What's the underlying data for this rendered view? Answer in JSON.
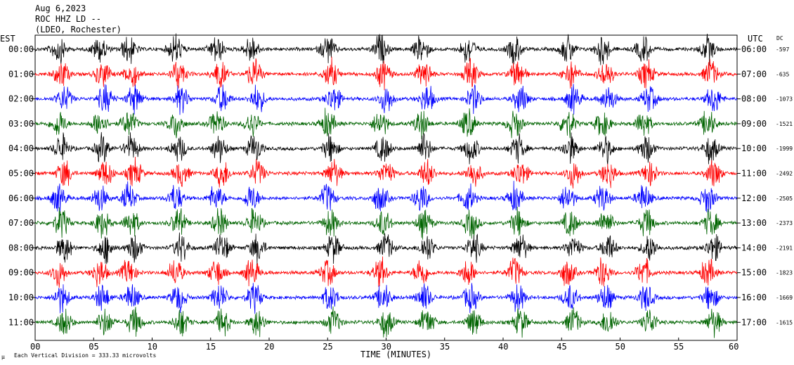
{
  "header": {
    "date": "Aug 6,2023",
    "station": "ROC HHZ LD --",
    "network": "(LDEO, Rochester)"
  },
  "footer": {
    "scale_note": "Each Vertical Division = 333.33 microvolts",
    "corner_mark": "μ"
  },
  "chart_data": {
    "type": "line",
    "title": "",
    "left_axis_label": "EST",
    "right_axis_label": "UTC",
    "dc_label": "DC",
    "xlabel": "TIME (MINUTES)",
    "xlim": [
      0,
      60
    ],
    "x_ticks": [
      "00",
      "05",
      "10",
      "15",
      "20",
      "25",
      "30",
      "35",
      "40",
      "45",
      "50",
      "55",
      "60"
    ],
    "colors": [
      "#000000",
      "#ff0000",
      "#0000ff",
      "#006400"
    ],
    "rows": [
      {
        "est": "00:00",
        "utc": "06:00",
        "dc": "-597",
        "color": "#000000"
      },
      {
        "est": "01:00",
        "utc": "07:00",
        "dc": "-635",
        "color": "#ff0000"
      },
      {
        "est": "02:00",
        "utc": "08:00",
        "dc": "-1073",
        "color": "#0000ff"
      },
      {
        "est": "03:00",
        "utc": "09:00",
        "dc": "-1521",
        "color": "#006400"
      },
      {
        "est": "04:00",
        "utc": "10:00",
        "dc": "-1999",
        "color": "#000000"
      },
      {
        "est": "05:00",
        "utc": "11:00",
        "dc": "-2492",
        "color": "#ff0000"
      },
      {
        "est": "06:00",
        "utc": "12:00",
        "dc": "-2505",
        "color": "#0000ff"
      },
      {
        "est": "07:00",
        "utc": "13:00",
        "dc": "-2373",
        "color": "#006400"
      },
      {
        "est": "08:00",
        "utc": "14:00",
        "dc": "-2191",
        "color": "#000000"
      },
      {
        "est": "09:00",
        "utc": "15:00",
        "dc": "-1823",
        "color": "#ff0000"
      },
      {
        "est": "10:00",
        "utc": "16:00",
        "dc": "-1669",
        "color": "#0000ff"
      },
      {
        "est": "11:00",
        "utc": "17:00",
        "dc": "-1615",
        "color": "#006400"
      }
    ],
    "noise_bursts_minutes": [
      2,
      5.5,
      8,
      12,
      15.5,
      18.5,
      25,
      29.5,
      33,
      37,
      41,
      45.5,
      48.5,
      52,
      57.5
    ],
    "grid": false,
    "legend": "none"
  }
}
